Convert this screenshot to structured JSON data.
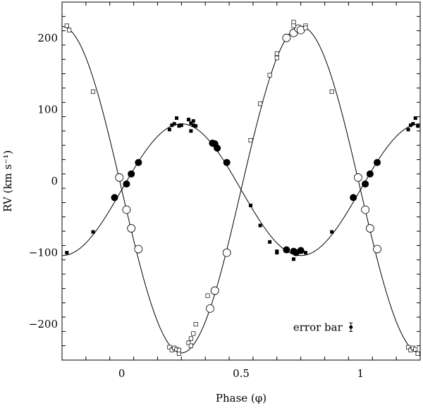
{
  "chart_data": {
    "type": "scatter",
    "xlabel": "Phase (φ)",
    "ylabel": "RV (km s⁻¹)",
    "xlim": [
      -0.25,
      1.25
    ],
    "ylim": [
      -250,
      250
    ],
    "x_ticks": [
      {
        "value": 0,
        "label": "0"
      },
      {
        "value": 0.5,
        "label": "0.5"
      },
      {
        "value": 1,
        "label": "1"
      }
    ],
    "y_ticks": [
      {
        "value": -200,
        "label": "−200"
      },
      {
        "value": -100,
        "label": "−100"
      },
      {
        "value": 0,
        "label": "0"
      },
      {
        "value": 100,
        "label": "100"
      },
      {
        "value": 200,
        "label": "200"
      }
    ],
    "x_minor_step": 0.1,
    "y_minor_step": 20,
    "annotation": {
      "text": "error bar",
      "x": 0.96,
      "y": -204,
      "err": 6
    },
    "fits": [
      {
        "gamma": -12,
        "K": 92,
        "phase_of_max": 0.25
      },
      {
        "gamma": -12,
        "K": 228,
        "phase_of_max": 0.75
      }
    ],
    "series": [
      {
        "marker": "filled-circle",
        "points": [
          [
            -0.03,
            -23
          ],
          [
            0.02,
            -4
          ],
          [
            0.04,
            10
          ],
          [
            0.07,
            26
          ],
          [
            0.38,
            53
          ],
          [
            0.39,
            52
          ],
          [
            0.4,
            46
          ],
          [
            0.44,
            26
          ],
          [
            0.69,
            -96
          ],
          [
            0.72,
            -98
          ],
          [
            0.73,
            -100
          ],
          [
            0.75,
            -97
          ],
          [
            0.97,
            -23
          ],
          [
            1.02,
            -4
          ],
          [
            1.04,
            10
          ],
          [
            1.07,
            26
          ]
        ]
      },
      {
        "marker": "filled-square",
        "points": [
          [
            -0.23,
            -100
          ],
          [
            -0.12,
            -71
          ],
          [
            0.2,
            72
          ],
          [
            0.21,
            78
          ],
          [
            0.22,
            80
          ],
          [
            0.23,
            88
          ],
          [
            0.24,
            77
          ],
          [
            0.25,
            78
          ],
          [
            0.28,
            86
          ],
          [
            0.29,
            81
          ],
          [
            0.29,
            70
          ],
          [
            0.3,
            78
          ],
          [
            0.31,
            77
          ],
          [
            0.3,
            84
          ],
          [
            0.54,
            -34
          ],
          [
            0.58,
            -62
          ],
          [
            0.62,
            -85
          ],
          [
            0.65,
            -98
          ],
          [
            0.65,
            -100
          ],
          [
            0.72,
            -109
          ],
          [
            0.77,
            -100
          ],
          [
            0.88,
            -71
          ],
          [
            1.2,
            72
          ],
          [
            1.21,
            78
          ],
          [
            1.22,
            80
          ],
          [
            1.23,
            88
          ],
          [
            1.24,
            77
          ]
        ]
      },
      {
        "marker": "open-circle",
        "points": [
          [
            -0.01,
            5
          ],
          [
            0.02,
            -40
          ],
          [
            0.04,
            -66
          ],
          [
            0.07,
            -95
          ],
          [
            0.37,
            -178
          ],
          [
            0.39,
            -153
          ],
          [
            0.44,
            -100
          ],
          [
            0.69,
            200
          ],
          [
            0.72,
            207
          ],
          [
            0.74,
            213
          ],
          [
            0.75,
            211
          ],
          [
            0.99,
            5
          ],
          [
            1.02,
            -40
          ],
          [
            1.04,
            -66
          ],
          [
            1.07,
            -95
          ]
        ]
      },
      {
        "marker": "open-square",
        "points": [
          [
            -0.23,
            217
          ],
          [
            -0.22,
            211
          ],
          [
            -0.12,
            125
          ],
          [
            0.2,
            -232
          ],
          [
            0.21,
            -236
          ],
          [
            0.22,
            -233
          ],
          [
            0.23,
            -235
          ],
          [
            0.24,
            -241
          ],
          [
            0.24,
            -236
          ],
          [
            0.28,
            -226
          ],
          [
            0.29,
            -230
          ],
          [
            0.29,
            -220
          ],
          [
            0.3,
            -213
          ],
          [
            0.31,
            -200
          ],
          [
            0.36,
            -160
          ],
          [
            0.54,
            57
          ],
          [
            0.58,
            108
          ],
          [
            0.62,
            148
          ],
          [
            0.65,
            172
          ],
          [
            0.65,
            178
          ],
          [
            0.72,
            222
          ],
          [
            0.72,
            217
          ],
          [
            0.77,
            217
          ],
          [
            0.77,
            214
          ],
          [
            0.88,
            125
          ],
          [
            1.2,
            -232
          ],
          [
            1.21,
            -236
          ],
          [
            1.22,
            -233
          ],
          [
            1.23,
            -235
          ],
          [
            1.24,
            -241
          ]
        ]
      }
    ]
  }
}
